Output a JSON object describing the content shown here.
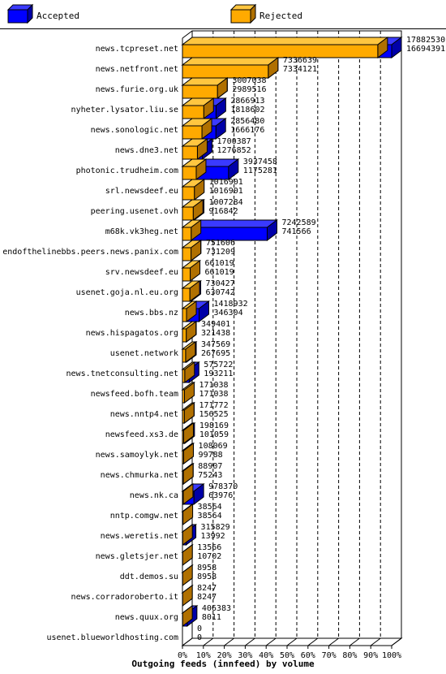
{
  "colors": {
    "accepted": "#0000ff",
    "accepted_top": "#3a3aff",
    "accepted_side": "#0000a8",
    "rejected": "#ffaa00",
    "rejected_top": "#ffc640",
    "rejected_side": "#b07000"
  },
  "chart_data": {
    "type": "bar",
    "title": "Outgoing feeds (innfeed) by volume",
    "legend_position": "top",
    "grid": true,
    "xlim": [
      0,
      100
    ],
    "x_ticks": [
      "0%",
      "10%",
      "20%",
      "30%",
      "40%",
      "50%",
      "60%",
      "70%",
      "80%",
      "90%",
      "100%"
    ],
    "series": [
      {
        "name": "Accepted"
      },
      {
        "name": "Rejected"
      }
    ],
    "categories": [
      {
        "label": "news.tcpreset.net",
        "accepted": 17882530,
        "rejected": 16694391
      },
      {
        "label": "news.netfront.net",
        "accepted": 7336639,
        "rejected": 7334121
      },
      {
        "label": "news.furie.org.uk",
        "accepted": 3007038,
        "rejected": 2989516
      },
      {
        "label": "nyheter.lysator.liu.se",
        "accepted": 2866913,
        "rejected": 1818602
      },
      {
        "label": "news.sonologic.net",
        "accepted": 2856480,
        "rejected": 1666176
      },
      {
        "label": "news.dne3.net",
        "accepted": 1700387,
        "rejected": 1276852
      },
      {
        "label": "photonic.trudheim.com",
        "accepted": 3937458,
        "rejected": 1175281
      },
      {
        "label": "srl.newsdeef.eu",
        "accepted": 1016901,
        "rejected": 1016901
      },
      {
        "label": "peering.usenet.ovh",
        "accepted": 1007284,
        "rejected": 916842
      },
      {
        "label": "m68k.vk3heg.net",
        "accepted": 7242589,
        "rejected": 741566
      },
      {
        "label": "endofthelinebbs.peers.news.panix.com",
        "accepted": 751606,
        "rejected": 731209
      },
      {
        "label": "srv.newsdeef.eu",
        "accepted": 661019,
        "rejected": 661019
      },
      {
        "label": "usenet.goja.nl.eu.org",
        "accepted": 730427,
        "rejected": 630742
      },
      {
        "label": "news.bbs.nz",
        "accepted": 1418932,
        "rejected": 346304
      },
      {
        "label": "news.hispagatos.org",
        "accepted": 349401,
        "rejected": 321438
      },
      {
        "label": "usenet.network",
        "accepted": 347569,
        "rejected": 267695
      },
      {
        "label": "news.tnetconsulting.net",
        "accepted": 575722,
        "rejected": 193211
      },
      {
        "label": "newsfeed.bofh.team",
        "accepted": 171038,
        "rejected": 171038
      },
      {
        "label": "news.nntp4.net",
        "accepted": 171772,
        "rejected": 156525
      },
      {
        "label": "newsfeed.xs3.de",
        "accepted": 198169,
        "rejected": 101059
      },
      {
        "label": "news.samoylyk.net",
        "accepted": 108069,
        "rejected": 99788
      },
      {
        "label": "news.chmurka.net",
        "accepted": 88907,
        "rejected": 75243
      },
      {
        "label": "news.nk.ca",
        "accepted": 978370,
        "rejected": 63976
      },
      {
        "label": "nntp.comgw.net",
        "accepted": 38564,
        "rejected": 38564
      },
      {
        "label": "news.weretis.net",
        "accepted": 315829,
        "rejected": 13992
      },
      {
        "label": "news.gletsjer.net",
        "accepted": 13566,
        "rejected": 10702
      },
      {
        "label": "ddt.demos.su",
        "accepted": 8958,
        "rejected": 8958
      },
      {
        "label": "news.corradoroberto.it",
        "accepted": 8247,
        "rejected": 8247
      },
      {
        "label": "news.quux.org",
        "accepted": 406383,
        "rejected": 8011
      },
      {
        "label": "usenet.blueworldhosting.com",
        "accepted": 0,
        "rejected": 0
      }
    ]
  }
}
